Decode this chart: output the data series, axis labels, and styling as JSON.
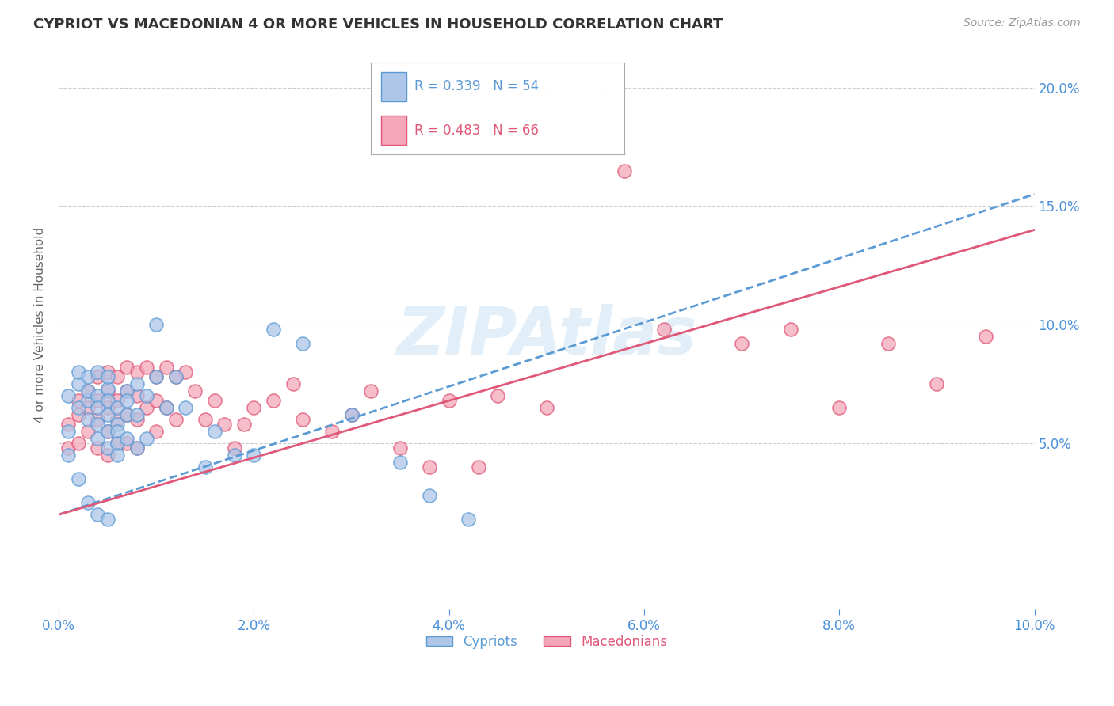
{
  "title": "CYPRIOT VS MACEDONIAN 4 OR MORE VEHICLES IN HOUSEHOLD CORRELATION CHART",
  "source": "Source: ZipAtlas.com",
  "ylabel": "4 or more Vehicles in Household",
  "xlim": [
    0.0,
    0.1
  ],
  "ylim": [
    -0.02,
    0.22
  ],
  "xtick_labels": [
    "0.0%",
    "2.0%",
    "4.0%",
    "6.0%",
    "8.0%",
    "10.0%"
  ],
  "xtick_values": [
    0.0,
    0.02,
    0.04,
    0.06,
    0.08,
    0.1
  ],
  "ytick_labels": [
    "5.0%",
    "10.0%",
    "15.0%",
    "20.0%"
  ],
  "ytick_values": [
    0.05,
    0.1,
    0.15,
    0.2
  ],
  "cypriot_color": "#aec6e8",
  "macedonian_color": "#f4a7b9",
  "cypriot_edge_color": "#5b9bd5",
  "macedonian_edge_color": "#e05878",
  "cypriot_line_color": "#5b9bd5",
  "macedonian_line_color": "#e05878",
  "R_cypriot": 0.339,
  "N_cypriot": 54,
  "R_macedonian": 0.483,
  "N_macedonian": 66,
  "legend_label_cypriot": "Cypriots",
  "legend_label_macedonian": "Macedonians",
  "watermark": "ZIPAtlas",
  "background_color": "#ffffff",
  "grid_color": "#cccccc",
  "cypriot_x": [
    0.001,
    0.001,
    0.001,
    0.002,
    0.002,
    0.002,
    0.002,
    0.003,
    0.003,
    0.003,
    0.003,
    0.003,
    0.004,
    0.004,
    0.004,
    0.004,
    0.004,
    0.004,
    0.005,
    0.005,
    0.005,
    0.005,
    0.005,
    0.005,
    0.005,
    0.006,
    0.006,
    0.006,
    0.006,
    0.006,
    0.007,
    0.007,
    0.007,
    0.007,
    0.008,
    0.008,
    0.008,
    0.009,
    0.009,
    0.01,
    0.01,
    0.011,
    0.012,
    0.013,
    0.015,
    0.016,
    0.018,
    0.02,
    0.022,
    0.025,
    0.03,
    0.035,
    0.038,
    0.042
  ],
  "cypriot_y": [
    0.07,
    0.055,
    0.045,
    0.075,
    0.08,
    0.065,
    0.035,
    0.068,
    0.072,
    0.078,
    0.06,
    0.025,
    0.07,
    0.065,
    0.08,
    0.058,
    0.052,
    0.02,
    0.073,
    0.068,
    0.078,
    0.062,
    0.055,
    0.048,
    0.018,
    0.065,
    0.058,
    0.055,
    0.05,
    0.045,
    0.072,
    0.068,
    0.062,
    0.052,
    0.075,
    0.062,
    0.048,
    0.07,
    0.052,
    0.1,
    0.078,
    0.065,
    0.078,
    0.065,
    0.04,
    0.055,
    0.045,
    0.045,
    0.098,
    0.092,
    0.062,
    0.042,
    0.028,
    0.018
  ],
  "macedonian_x": [
    0.001,
    0.001,
    0.002,
    0.002,
    0.002,
    0.003,
    0.003,
    0.003,
    0.004,
    0.004,
    0.004,
    0.004,
    0.005,
    0.005,
    0.005,
    0.005,
    0.005,
    0.006,
    0.006,
    0.006,
    0.006,
    0.007,
    0.007,
    0.007,
    0.007,
    0.008,
    0.008,
    0.008,
    0.008,
    0.009,
    0.009,
    0.01,
    0.01,
    0.01,
    0.011,
    0.011,
    0.012,
    0.012,
    0.013,
    0.014,
    0.015,
    0.016,
    0.017,
    0.018,
    0.019,
    0.02,
    0.022,
    0.024,
    0.025,
    0.028,
    0.03,
    0.032,
    0.035,
    0.038,
    0.04,
    0.043,
    0.045,
    0.05,
    0.058,
    0.062,
    0.07,
    0.075,
    0.08,
    0.085,
    0.09,
    0.095
  ],
  "macedonian_y": [
    0.058,
    0.048,
    0.068,
    0.062,
    0.05,
    0.072,
    0.065,
    0.055,
    0.078,
    0.068,
    0.06,
    0.048,
    0.08,
    0.072,
    0.065,
    0.055,
    0.045,
    0.078,
    0.068,
    0.06,
    0.05,
    0.082,
    0.072,
    0.062,
    0.05,
    0.08,
    0.07,
    0.06,
    0.048,
    0.082,
    0.065,
    0.078,
    0.068,
    0.055,
    0.082,
    0.065,
    0.078,
    0.06,
    0.08,
    0.072,
    0.06,
    0.068,
    0.058,
    0.048,
    0.058,
    0.065,
    0.068,
    0.075,
    0.06,
    0.055,
    0.062,
    0.072,
    0.048,
    0.04,
    0.068,
    0.04,
    0.07,
    0.065,
    0.165,
    0.098,
    0.092,
    0.098,
    0.065,
    0.092,
    0.075,
    0.095
  ]
}
